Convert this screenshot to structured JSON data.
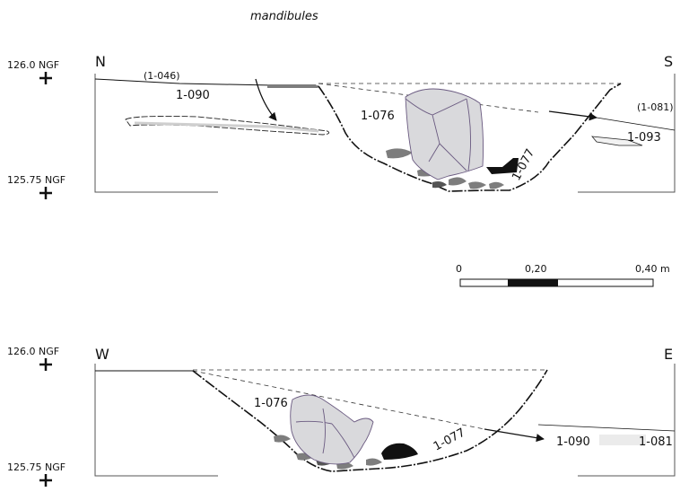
{
  "title": "mandibules",
  "scale": {
    "tick_0": "0",
    "tick_1": "0,20",
    "tick_2": "0,40 m"
  },
  "section_ns": {
    "left_dir": "N",
    "right_dir": "S",
    "level_top": "126.0 NGF",
    "level_bottom": "125.75 NGF",
    "units": {
      "u1046": "(1-046)",
      "u1090": "1-090",
      "u1076": "1-076",
      "u1077": "1-077",
      "u1081": "(1-081)",
      "u1093": "1-093"
    }
  },
  "section_we": {
    "left_dir": "W",
    "right_dir": "E",
    "level_top": "126.0 NGF",
    "level_bottom": "125.75 NGF",
    "units": {
      "u1076": "1-076",
      "u1077": "1-077",
      "u1090": "1-090",
      "u1081": "1-081"
    }
  },
  "colors": {
    "bone_fill": "#d9d9dc",
    "bone_stroke": "#6a5a80",
    "stone_fill": "#7d7d7d",
    "dark_fill": "#111111",
    "line": "#111111"
  }
}
